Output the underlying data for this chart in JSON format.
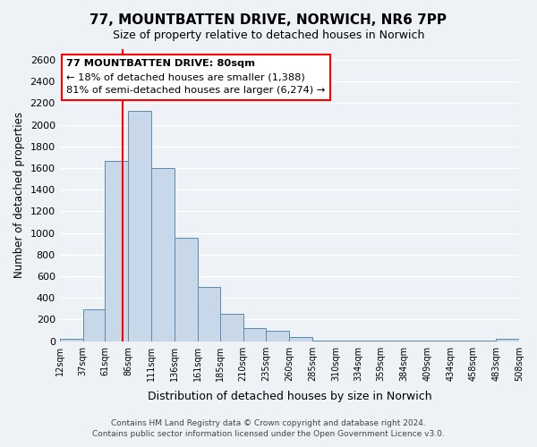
{
  "title_line1": "77, MOUNTBATTEN DRIVE, NORWICH, NR6 7PP",
  "title_line2": "Size of property relative to detached houses in Norwich",
  "xlabel": "Distribution of detached houses by size in Norwich",
  "ylabel": "Number of detached properties",
  "bar_color": "#c8d8e8",
  "bar_edge_color": "#5a8ab0",
  "vline_x": 80,
  "vline_color": "red",
  "annotation_title": "77 MOUNTBATTEN DRIVE: 80sqm",
  "annotation_line2": "← 18% of detached houses are smaller (1,388)",
  "annotation_line3": "81% of semi-detached houses are larger (6,274) →",
  "annotation_box_color": "white",
  "annotation_box_edge": "red",
  "bins": [
    12,
    37,
    61,
    86,
    111,
    136,
    161,
    185,
    210,
    235,
    260,
    285,
    310,
    334,
    359,
    384,
    409,
    434,
    458,
    483,
    508
  ],
  "counts": [
    20,
    295,
    1670,
    2130,
    1600,
    960,
    505,
    255,
    120,
    95,
    35,
    5,
    5,
    5,
    5,
    5,
    5,
    5,
    5,
    20
  ],
  "ylim": [
    0,
    2700
  ],
  "yticks": [
    0,
    200,
    400,
    600,
    800,
    1000,
    1200,
    1400,
    1600,
    1800,
    2000,
    2200,
    2400,
    2600
  ],
  "footer_line1": "Contains HM Land Registry data © Crown copyright and database right 2024.",
  "footer_line2": "Contains public sector information licensed under the Open Government Licence v3.0.",
  "background_color": "#eef2f7"
}
